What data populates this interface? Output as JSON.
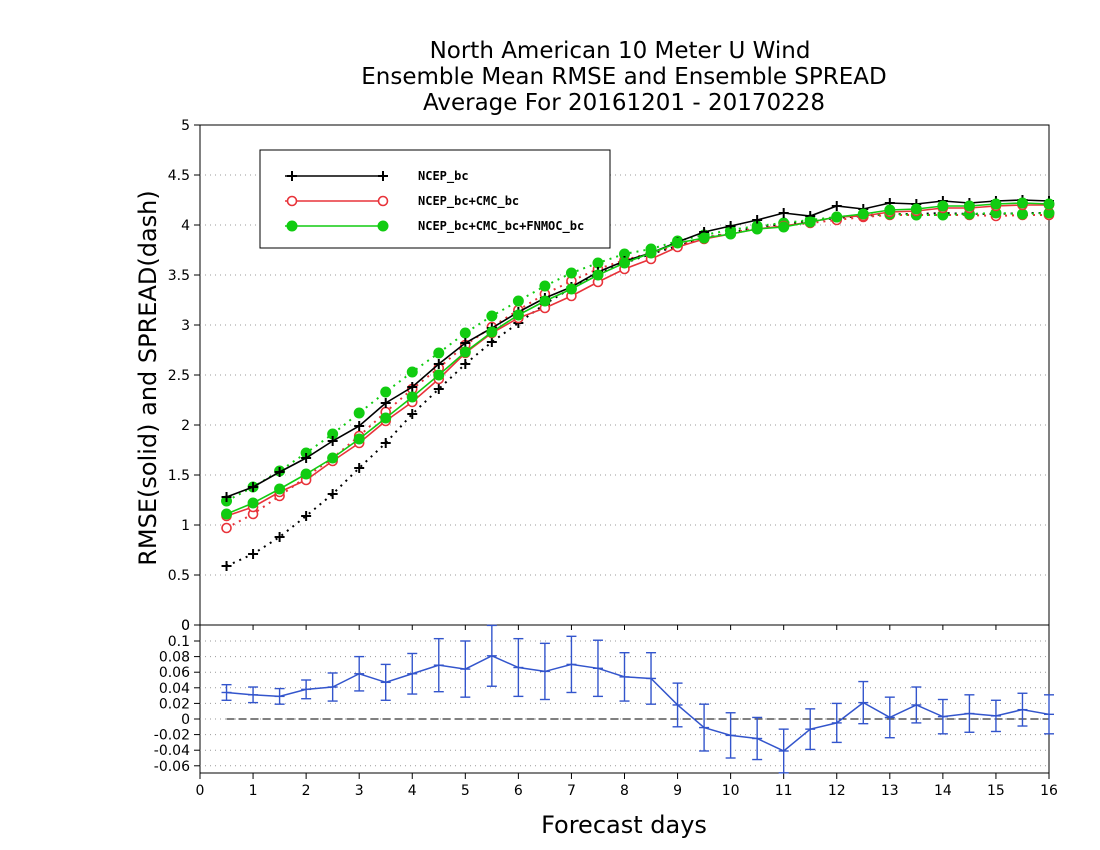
{
  "title": {
    "line1": "North American 10 Meter U Wind",
    "line2": "Ensemble Mean RMSE and Ensemble SPREAD",
    "line3": "Average For 20161201 - 20170228"
  },
  "chart_data": [
    {
      "type": "line",
      "panel": "main",
      "ylabel": "RMSE(solid) and SPREAD(dash)",
      "xlim": [
        0,
        16
      ],
      "ylim": [
        0,
        5
      ],
      "yticks": [
        "0",
        "0.5",
        "1",
        "1.5",
        "2",
        "2.5",
        "3",
        "3.5",
        "4",
        "4.5",
        "5"
      ],
      "grid": true,
      "legend_position": "top-left",
      "x": [
        0.5,
        1,
        1.5,
        2,
        2.5,
        3,
        3.5,
        4,
        4.5,
        5,
        5.5,
        6,
        6.5,
        7,
        7.5,
        8,
        8.5,
        9,
        9.5,
        10,
        10.5,
        11,
        11.5,
        12,
        12.5,
        13,
        13.5,
        14,
        14.5,
        15,
        15.5,
        16
      ],
      "series": [
        {
          "name": "NCEP_bc",
          "color": "#000000",
          "marker": "plus",
          "rmse": [
            1.28,
            1.38,
            1.53,
            1.67,
            1.84,
            1.99,
            2.22,
            2.38,
            2.61,
            2.82,
            2.97,
            3.13,
            3.27,
            3.38,
            3.53,
            3.64,
            3.72,
            3.83,
            3.93,
            3.99,
            4.05,
            4.12,
            4.09,
            4.19,
            4.16,
            4.22,
            4.21,
            4.24,
            4.22,
            4.24,
            4.25,
            4.24
          ],
          "spread": [
            0.59,
            0.71,
            0.88,
            1.09,
            1.31,
            1.57,
            1.82,
            2.11,
            2.36,
            2.61,
            2.83,
            3.02,
            3.21,
            3.37,
            3.51,
            3.62,
            3.71,
            3.79,
            3.87,
            3.92,
            3.98,
            4.01,
            4.04,
            4.07,
            4.09,
            4.11,
            4.11,
            4.12,
            4.11,
            4.11,
            4.12,
            4.12
          ]
        },
        {
          "name": "NCEP_bc+CMC_bc",
          "color": "#e8333a",
          "marker": "open-circle",
          "rmse": [
            1.09,
            1.18,
            1.33,
            1.45,
            1.64,
            1.82,
            2.04,
            2.23,
            2.46,
            2.72,
            2.92,
            3.07,
            3.17,
            3.29,
            3.43,
            3.56,
            3.66,
            3.78,
            3.86,
            3.91,
            3.96,
            3.99,
            4.03,
            4.08,
            4.09,
            4.13,
            4.14,
            4.17,
            4.17,
            4.19,
            4.2,
            4.2
          ],
          "spread": [
            0.97,
            1.11,
            1.29,
            1.48,
            1.67,
            1.89,
            2.13,
            2.36,
            2.57,
            2.8,
            2.98,
            3.15,
            3.31,
            3.44,
            3.56,
            3.65,
            3.72,
            3.8,
            3.87,
            3.92,
            3.97,
            3.99,
            4.02,
            4.05,
            4.08,
            4.1,
            4.1,
            4.1,
            4.1,
            4.09,
            4.1,
            4.1
          ]
        },
        {
          "name": "NCEP_bc+CMC_bc+FNMOC_bc",
          "color": "#11cc11",
          "marker": "filled-circle",
          "rmse": [
            1.11,
            1.22,
            1.36,
            1.51,
            1.67,
            1.86,
            2.07,
            2.28,
            2.5,
            2.73,
            2.93,
            3.1,
            3.24,
            3.36,
            3.5,
            3.62,
            3.72,
            3.82,
            3.87,
            3.91,
            3.96,
            3.98,
            4.03,
            4.08,
            4.11,
            4.15,
            4.16,
            4.19,
            4.19,
            4.21,
            4.22,
            4.21
          ],
          "spread": [
            1.24,
            1.38,
            1.54,
            1.72,
            1.91,
            2.12,
            2.33,
            2.53,
            2.72,
            2.92,
            3.09,
            3.24,
            3.39,
            3.52,
            3.62,
            3.71,
            3.76,
            3.84,
            3.9,
            3.95,
            3.99,
            4.02,
            4.05,
            4.08,
            4.1,
            4.11,
            4.1,
            4.1,
            4.11,
            4.12,
            4.11,
            4.12
          ]
        }
      ]
    },
    {
      "type": "line",
      "panel": "difference",
      "xlabel": "Forecast days",
      "xlim": [
        0,
        16
      ],
      "ylim": [
        -0.07,
        0.12
      ],
      "xticks": [
        "0",
        "1",
        "2",
        "3",
        "4",
        "5",
        "6",
        "7",
        "8",
        "9",
        "10",
        "11",
        "12",
        "13",
        "14",
        "15",
        "16"
      ],
      "yticks": [
        "-0.06",
        "-0.04",
        "-0.02",
        "0",
        "0.02",
        "0.04",
        "0.06",
        "0.08",
        "0.1"
      ],
      "top_label": "0",
      "color": "#3355cc",
      "x": [
        0.5,
        1,
        1.5,
        2,
        2.5,
        3,
        3.5,
        4,
        4.5,
        5,
        5.5,
        6,
        6.5,
        7,
        7.5,
        8,
        8.5,
        9,
        9.5,
        10,
        10.5,
        11,
        11.5,
        12,
        12.5,
        13,
        13.5,
        14,
        14.5,
        15,
        15.5,
        16
      ],
      "values": [
        0.034,
        0.031,
        0.029,
        0.038,
        0.041,
        0.058,
        0.047,
        0.058,
        0.069,
        0.064,
        0.081,
        0.066,
        0.061,
        0.07,
        0.065,
        0.054,
        0.052,
        0.018,
        -0.011,
        -0.021,
        -0.025,
        -0.041,
        -0.013,
        -0.005,
        0.021,
        0.002,
        0.018,
        0.003,
        0.007,
        0.004,
        0.012,
        0.006
      ],
      "error": [
        0.01,
        0.01,
        0.01,
        0.012,
        0.018,
        0.022,
        0.023,
        0.026,
        0.034,
        0.036,
        0.039,
        0.037,
        0.036,
        0.036,
        0.036,
        0.031,
        0.033,
        0.028,
        0.03,
        0.029,
        0.027,
        0.028,
        0.026,
        0.025,
        0.027,
        0.026,
        0.023,
        0.022,
        0.024,
        0.02,
        0.021,
        0.025
      ],
      "zero_line": true
    }
  ]
}
